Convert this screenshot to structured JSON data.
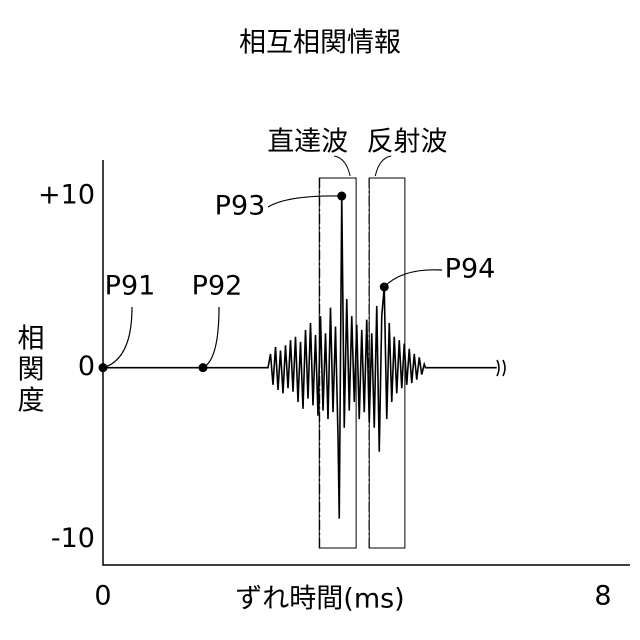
{
  "chart_data": {
    "type": "line",
    "title": "相互相関情報",
    "x_label": "ずれ時間(ms)",
    "y_label": "相関度",
    "xlim": [
      0,
      8
    ],
    "xticks": [
      0,
      8
    ],
    "ylim": [
      -11.5,
      12.1
    ],
    "yticks": [
      {
        "value": 10,
        "label": "+10"
      },
      0,
      -10
    ],
    "color": "#000000",
    "x": [
      0,
      2.64,
      2.68,
      2.72,
      2.76,
      2.8,
      2.84,
      2.88,
      2.92,
      2.96,
      3.0,
      3.04,
      3.08,
      3.12,
      3.16,
      3.2,
      3.24,
      3.28,
      3.32,
      3.36,
      3.4,
      3.44,
      3.48,
      3.52,
      3.56,
      3.6,
      3.64,
      3.68,
      3.72,
      3.76,
      3.78,
      3.82,
      3.86,
      3.9,
      3.94,
      3.98,
      4.02,
      4.06,
      4.1,
      4.14,
      4.18,
      4.22,
      4.26,
      4.3,
      4.34,
      4.38,
      4.42,
      4.46,
      4.5,
      4.54,
      4.58,
      4.62,
      4.66,
      4.7,
      4.74,
      4.78,
      4.82,
      4.86,
      4.9,
      4.94,
      4.98,
      5.02,
      5.06,
      5.1,
      5.14,
      5.16,
      6.3
    ],
    "values": [
      0,
      0,
      0.8,
      -1.0,
      1.2,
      -1.3,
      1.0,
      -1.5,
      1.3,
      -1.2,
      1.6,
      -1.4,
      1.8,
      -2.0,
      1.5,
      -2.4,
      2.2,
      -1.8,
      2.6,
      -2.2,
      1.9,
      -2.8,
      3.0,
      -2.5,
      2.0,
      -3.0,
      3.5,
      -2.6,
      2.4,
      -4.0,
      -8.8,
      10,
      -3.5,
      4.0,
      -2.5,
      3.0,
      -2.0,
      2.5,
      -3.0,
      2.2,
      -2.6,
      2.8,
      -3.2,
      2.0,
      -3.5,
      3.6,
      -4.9,
      3.0,
      4.7,
      -3.0,
      2.6,
      -2.0,
      1.8,
      -1.5,
      1.6,
      -1.2,
      1.4,
      -1.0,
      1.1,
      -0.9,
      0.8,
      -0.7,
      0.6,
      -0.4,
      0.2,
      0,
      0
    ],
    "points": [
      {
        "label": "P91",
        "x": 0,
        "y": 0
      },
      {
        "label": "P92",
        "x": 1.6,
        "y": 0
      },
      {
        "label": "P93",
        "x": 3.82,
        "y": 10
      },
      {
        "label": "P94",
        "x": 4.5,
        "y": 4.7
      }
    ],
    "windows": [
      {
        "label": "直達波",
        "x": [
          3.46,
          4.05
        ]
      },
      {
        "label": "反射波",
        "x": [
          4.26,
          4.83
        ]
      }
    ]
  }
}
